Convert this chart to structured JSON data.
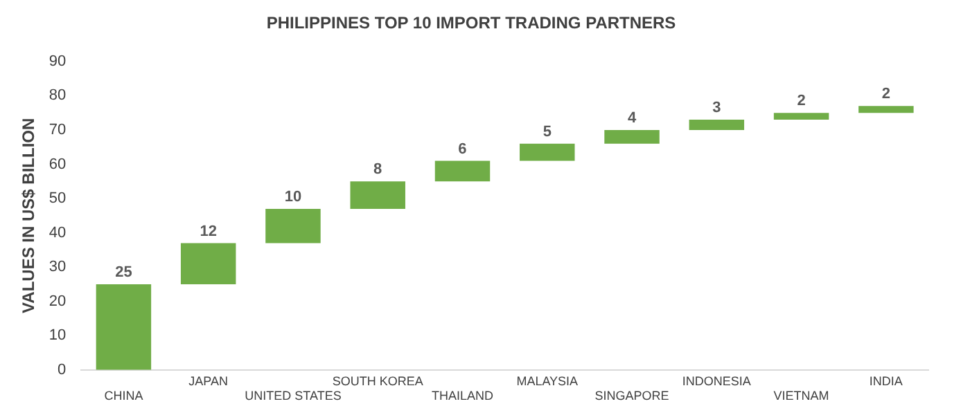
{
  "chart_data": {
    "type": "bar",
    "title": "PHILIPPINES TOP 10 IMPORT TRADING PARTNERS",
    "ylabel": "VALUES IN US$ BILLION",
    "categories": [
      "CHINA",
      "JAPAN",
      "UNITED STATES",
      "SOUTH KOREA",
      "THAILAND",
      "MALAYSIA",
      "SINGAPORE",
      "INDONESIA",
      "VIETNAM",
      "INDIA"
    ],
    "values": [
      25,
      12,
      10,
      8,
      6,
      5,
      4,
      3,
      2,
      2
    ],
    "base": [
      0,
      25,
      37,
      47,
      55,
      61,
      66,
      70,
      73,
      75
    ],
    "color": "#70ad47",
    "ylim": [
      0,
      90
    ],
    "yticks": [
      0,
      10,
      20,
      30,
      40,
      50,
      60,
      70,
      80,
      90
    ],
    "grid": false,
    "legend": false,
    "data_labels": true
  }
}
